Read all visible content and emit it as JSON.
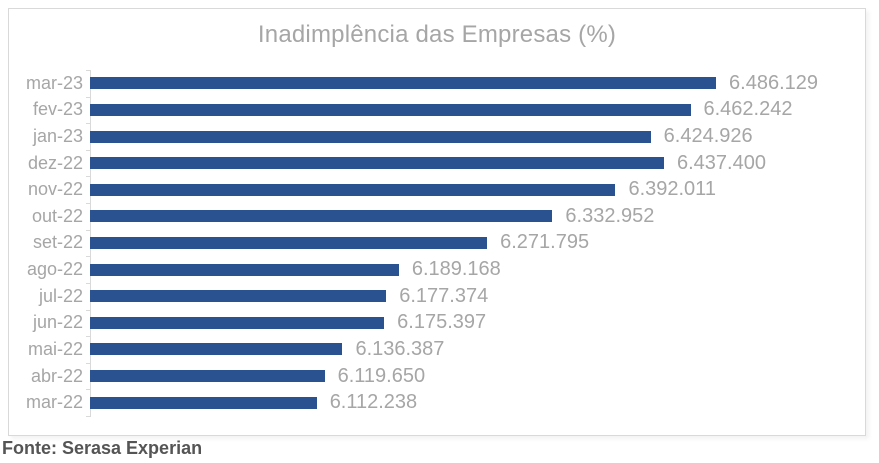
{
  "title": "Inadimplência das Empresas (%)",
  "source": "Fonte: Serasa Experian",
  "colors": {
    "bar": "#2A5291",
    "text_gray": "#A6A6A6",
    "axis_gray": "#D9D9D9",
    "source_text": "#555555"
  },
  "chart_data": {
    "type": "bar",
    "orientation": "horizontal",
    "title": "Inadimplência das Empresas (%)",
    "categories": [
      "mar-23",
      "fev-23",
      "jan-23",
      "dez-22",
      "nov-22",
      "out-22",
      "set-22",
      "ago-22",
      "jul-22",
      "jun-22",
      "mai-22",
      "abr-22",
      "mar-22"
    ],
    "values": [
      6486129,
      6462242,
      6424926,
      6437400,
      6392011,
      6332952,
      6271795,
      6189168,
      6177374,
      6175397,
      6136387,
      6119650,
      6112238
    ],
    "display_labels": [
      "6.486.129",
      "6.462.242",
      "6.424.926",
      "6.437.400",
      "6.392.011",
      "6.332.952",
      "6.271.795",
      "6.189.168",
      "6.177.374",
      "6.175.397",
      "6.136.387",
      "6.119.650",
      "6.112.238"
    ],
    "xlabel": "",
    "ylabel": "",
    "axis_min": 5900000,
    "axis_max": 6620000,
    "grid": false,
    "legend": false,
    "data_labels": true
  }
}
